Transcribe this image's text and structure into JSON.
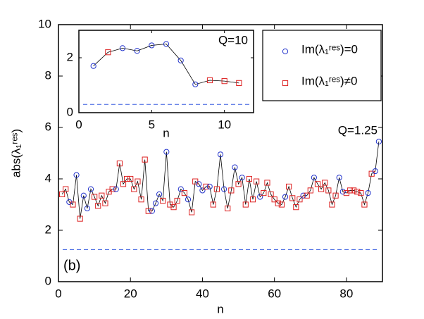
{
  "chart_data": [
    {
      "type": "line",
      "xlabel": "n",
      "ylabel": "abs(λ₁ʳᵉˢ)",
      "annotations": [
        "Q=1.25",
        "(b)"
      ],
      "xlim": [
        0,
        90
      ],
      "xticks": [
        0,
        20,
        40,
        60,
        80
      ],
      "ylim": [
        0,
        10
      ],
      "yticks": [
        0,
        2,
        4,
        6,
        8,
        10
      ],
      "line_color": "#000000",
      "reference_line": 1.25,
      "reference_color": "#3a5fe0",
      "series": [
        {
          "name": "Im(λ₁ʳᵉˢ)=0",
          "color": "#2233cc",
          "marker": "circle"
        },
        {
          "name": "Im(λ₁ʳᵉˢ)≠0",
          "color": "#dd2222",
          "marker": "square"
        }
      ],
      "legend": "upper right",
      "x": [
        1,
        2,
        3,
        4,
        5,
        6,
        7,
        8,
        9,
        10,
        11,
        12,
        13,
        14,
        15,
        16,
        17,
        18,
        19,
        20,
        21,
        22,
        23,
        24,
        25,
        26,
        27,
        28,
        29,
        30,
        31,
        32,
        33,
        34,
        35,
        36,
        37,
        38,
        39,
        40,
        41,
        42,
        43,
        44,
        45,
        46,
        47,
        48,
        49,
        50,
        51,
        52,
        53,
        54,
        55,
        56,
        57,
        58,
        59,
        60,
        61,
        62,
        63,
        64,
        65,
        66,
        67,
        68,
        69,
        70,
        71,
        72,
        73,
        74,
        75,
        76,
        77,
        78,
        79,
        80,
        81,
        82,
        83,
        84,
        85,
        86,
        87,
        88,
        89
      ],
      "values": [
        3.4,
        3.6,
        3.1,
        3.0,
        4.15,
        2.45,
        3.35,
        2.85,
        3.6,
        3.3,
        2.95,
        3.35,
        3.05,
        3.5,
        3.6,
        3.6,
        4.6,
        3.8,
        4.0,
        4.0,
        3.6,
        3.9,
        3.2,
        4.75,
        2.75,
        2.75,
        3.05,
        3.4,
        3.15,
        5.05,
        3.0,
        2.9,
        3.15,
        3.6,
        3.45,
        3.2,
        2.7,
        3.9,
        3.8,
        3.55,
        3.7,
        3.7,
        3.0,
        3.6,
        4.95,
        3.6,
        2.85,
        3.55,
        4.45,
        3.8,
        4.05,
        3.0,
        4.0,
        3.2,
        3.9,
        3.3,
        3.45,
        3.85,
        3.4,
        3.2,
        3.05,
        3.0,
        3.3,
        3.7,
        3.25,
        2.9,
        3.2,
        3.35,
        3.35,
        3.55,
        4.05,
        3.8,
        3.6,
        3.85,
        3.55,
        3.0,
        3.35,
        4.05,
        3.5,
        3.45,
        3.55,
        3.55,
        3.5,
        3.45,
        3.0,
        3.45,
        4.2,
        4.3,
        5.45
      ],
      "marker_series": [
        1,
        1,
        0,
        1,
        0,
        1,
        0,
        0,
        0,
        1,
        1,
        1,
        1,
        1,
        1,
        0,
        1,
        1,
        1,
        1,
        1,
        1,
        1,
        1,
        1,
        0,
        0,
        0,
        1,
        0,
        1,
        1,
        1,
        0,
        1,
        0,
        1,
        1,
        0,
        0,
        1,
        0,
        1,
        1,
        0,
        0,
        1,
        1,
        0,
        1,
        0,
        1,
        1,
        1,
        1,
        0,
        1,
        1,
        1,
        1,
        1,
        1,
        0,
        1,
        1,
        1,
        1,
        0,
        1,
        1,
        0,
        1,
        1,
        1,
        1,
        1,
        1,
        0,
        0,
        1,
        1,
        1,
        1,
        1,
        1,
        0,
        1,
        0,
        0
      ]
    },
    {
      "type": "line",
      "xlabel": "n",
      "annotations": [
        "Q=10"
      ],
      "xlim": [
        0,
        12
      ],
      "xticks": [
        0,
        5,
        10
      ],
      "ylim": [
        0,
        3
      ],
      "yticks": [
        0,
        2
      ],
      "line_color": "#000000",
      "reference_line": 0.3,
      "reference_color": "#3a5fe0",
      "x": [
        1,
        2,
        3,
        4,
        5,
        6,
        7,
        8,
        9,
        10,
        11
      ],
      "values": [
        1.7,
        2.2,
        2.35,
        2.25,
        2.45,
        2.5,
        1.9,
        1.03,
        1.18,
        1.15,
        1.08
      ],
      "marker_series": [
        0,
        1,
        0,
        0,
        0,
        0,
        0,
        0,
        1,
        1,
        1
      ]
    }
  ]
}
